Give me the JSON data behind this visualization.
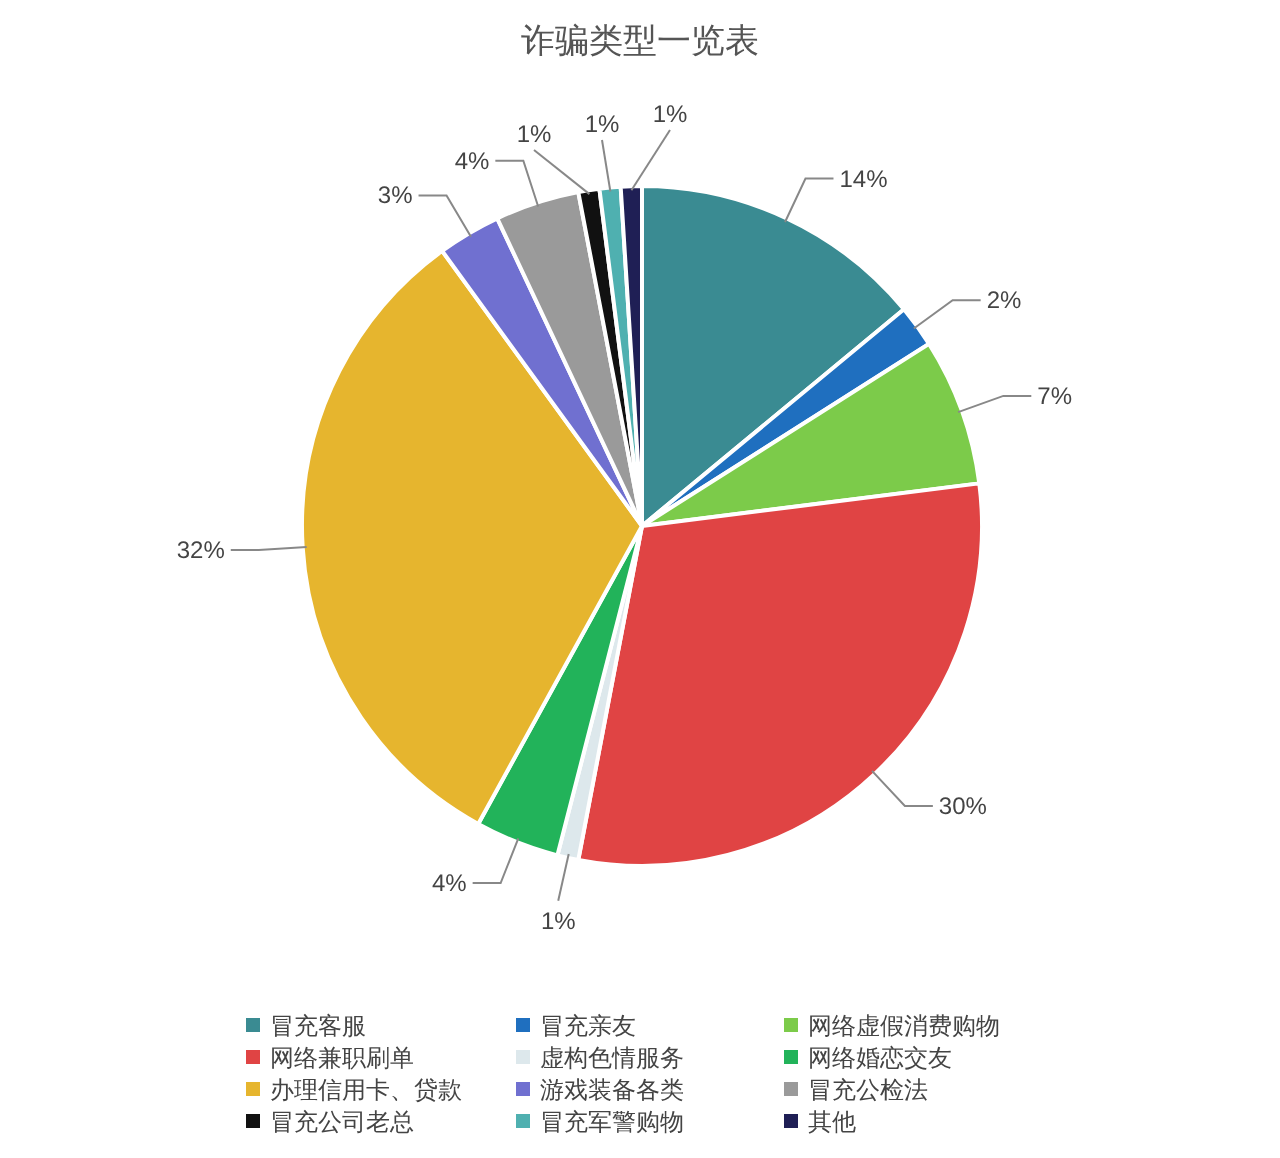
{
  "chart_data": {
    "type": "pie",
    "title": "诈骗类型一览表",
    "categories": [
      "冒充客服",
      "冒充亲友",
      "网络虚假消费购物",
      "网络兼职刷单",
      "虚构色情服务",
      "网络婚恋交友",
      "办理信用卡、贷款",
      "游戏装备各类",
      "冒充公检法",
      "冒充公司老总",
      "冒充军警购物",
      "其他"
    ],
    "values": [
      14,
      2,
      7,
      30,
      1,
      4,
      32,
      3,
      4,
      1,
      1,
      1
    ],
    "colors": [
      "#3a8b92",
      "#1f6fbf",
      "#7ccb4a",
      "#e04444",
      "#dde8ec",
      "#22b35a",
      "#e6b52e",
      "#7070d0",
      "#9a9a9a",
      "#111111",
      "#4fb0b0",
      "#1f1f55"
    ],
    "value_labels": [
      "14%",
      "2%",
      "7%",
      "30%",
      "1%",
      "4%",
      "32%",
      "3%",
      "4%",
      "1%",
      "1%",
      "1%"
    ],
    "legend": "bottom"
  }
}
